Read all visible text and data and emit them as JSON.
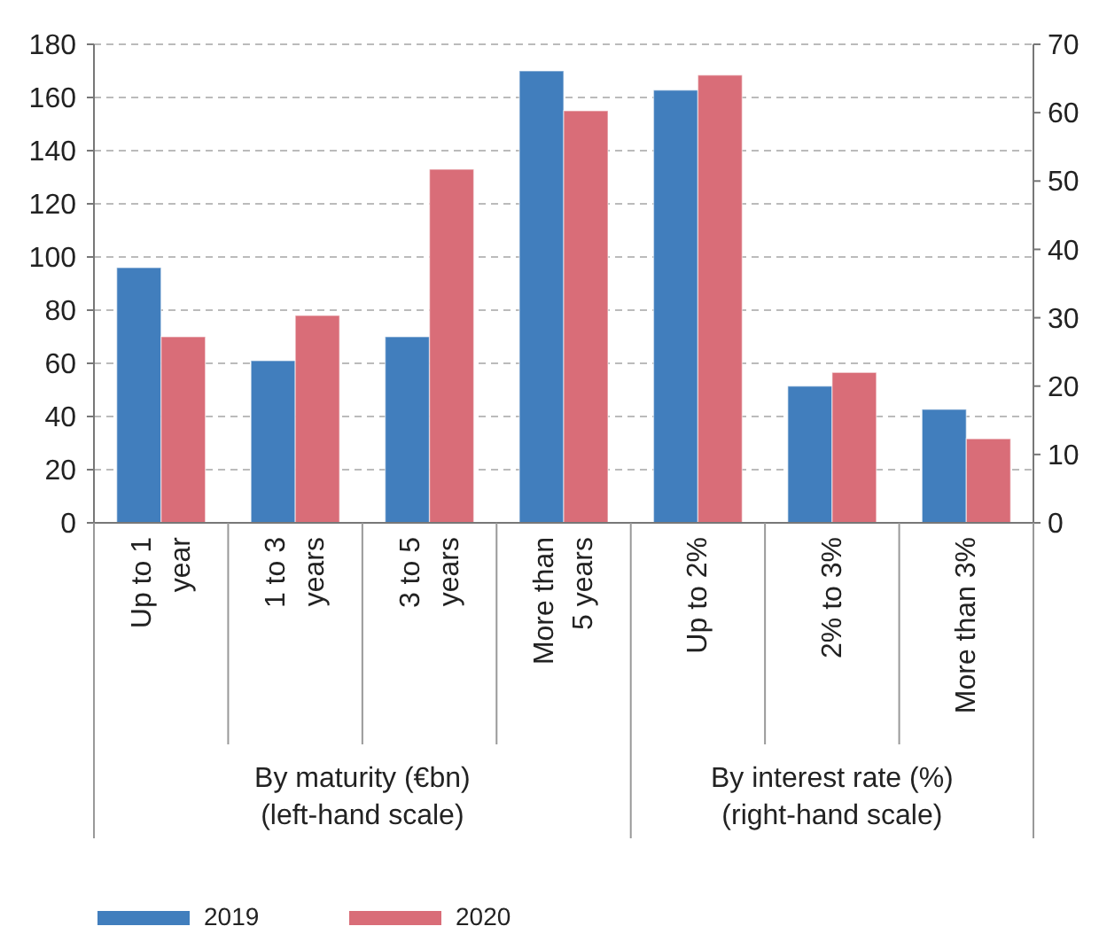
{
  "chart_data": {
    "type": "bar",
    "categories": [
      "Up to 1\nyear",
      "1 to 3\nyears",
      "3 to 5\nyears",
      "More than\n5 years",
      "Up to 2%",
      "2% to 3%",
      "More than 3%"
    ],
    "series": [
      {
        "name": "2019",
        "color": "#417ebd",
        "values": [
          96,
          61,
          70,
          170,
          null,
          null,
          null
        ]
      },
      {
        "name": "2020",
        "color": "#d96d78",
        "values": [
          70,
          78,
          133,
          155,
          null,
          null,
          null
        ]
      },
      {
        "color": "#417ebd",
        "axis": "y2",
        "values": [
          null,
          null,
          null,
          null,
          63.3,
          20,
          16.6
        ]
      },
      {
        "color": "#d96d78",
        "axis": "y2",
        "values": [
          null,
          null,
          null,
          null,
          65.5,
          22,
          12.3
        ]
      }
    ],
    "ylim": [
      0,
      180
    ],
    "yticks": [
      0,
      20,
      40,
      60,
      80,
      100,
      120,
      140,
      160,
      180
    ],
    "y2lim": [
      0,
      70
    ],
    "y2ticks": [
      0,
      10,
      20,
      30,
      40,
      50,
      60,
      70
    ],
    "annotations": [
      "By maturity (€bn)\n(left-hand scale)",
      "By interest rate (%)\n(right-hand scale)"
    ],
    "grid": "y",
    "legend": "bottom left"
  }
}
